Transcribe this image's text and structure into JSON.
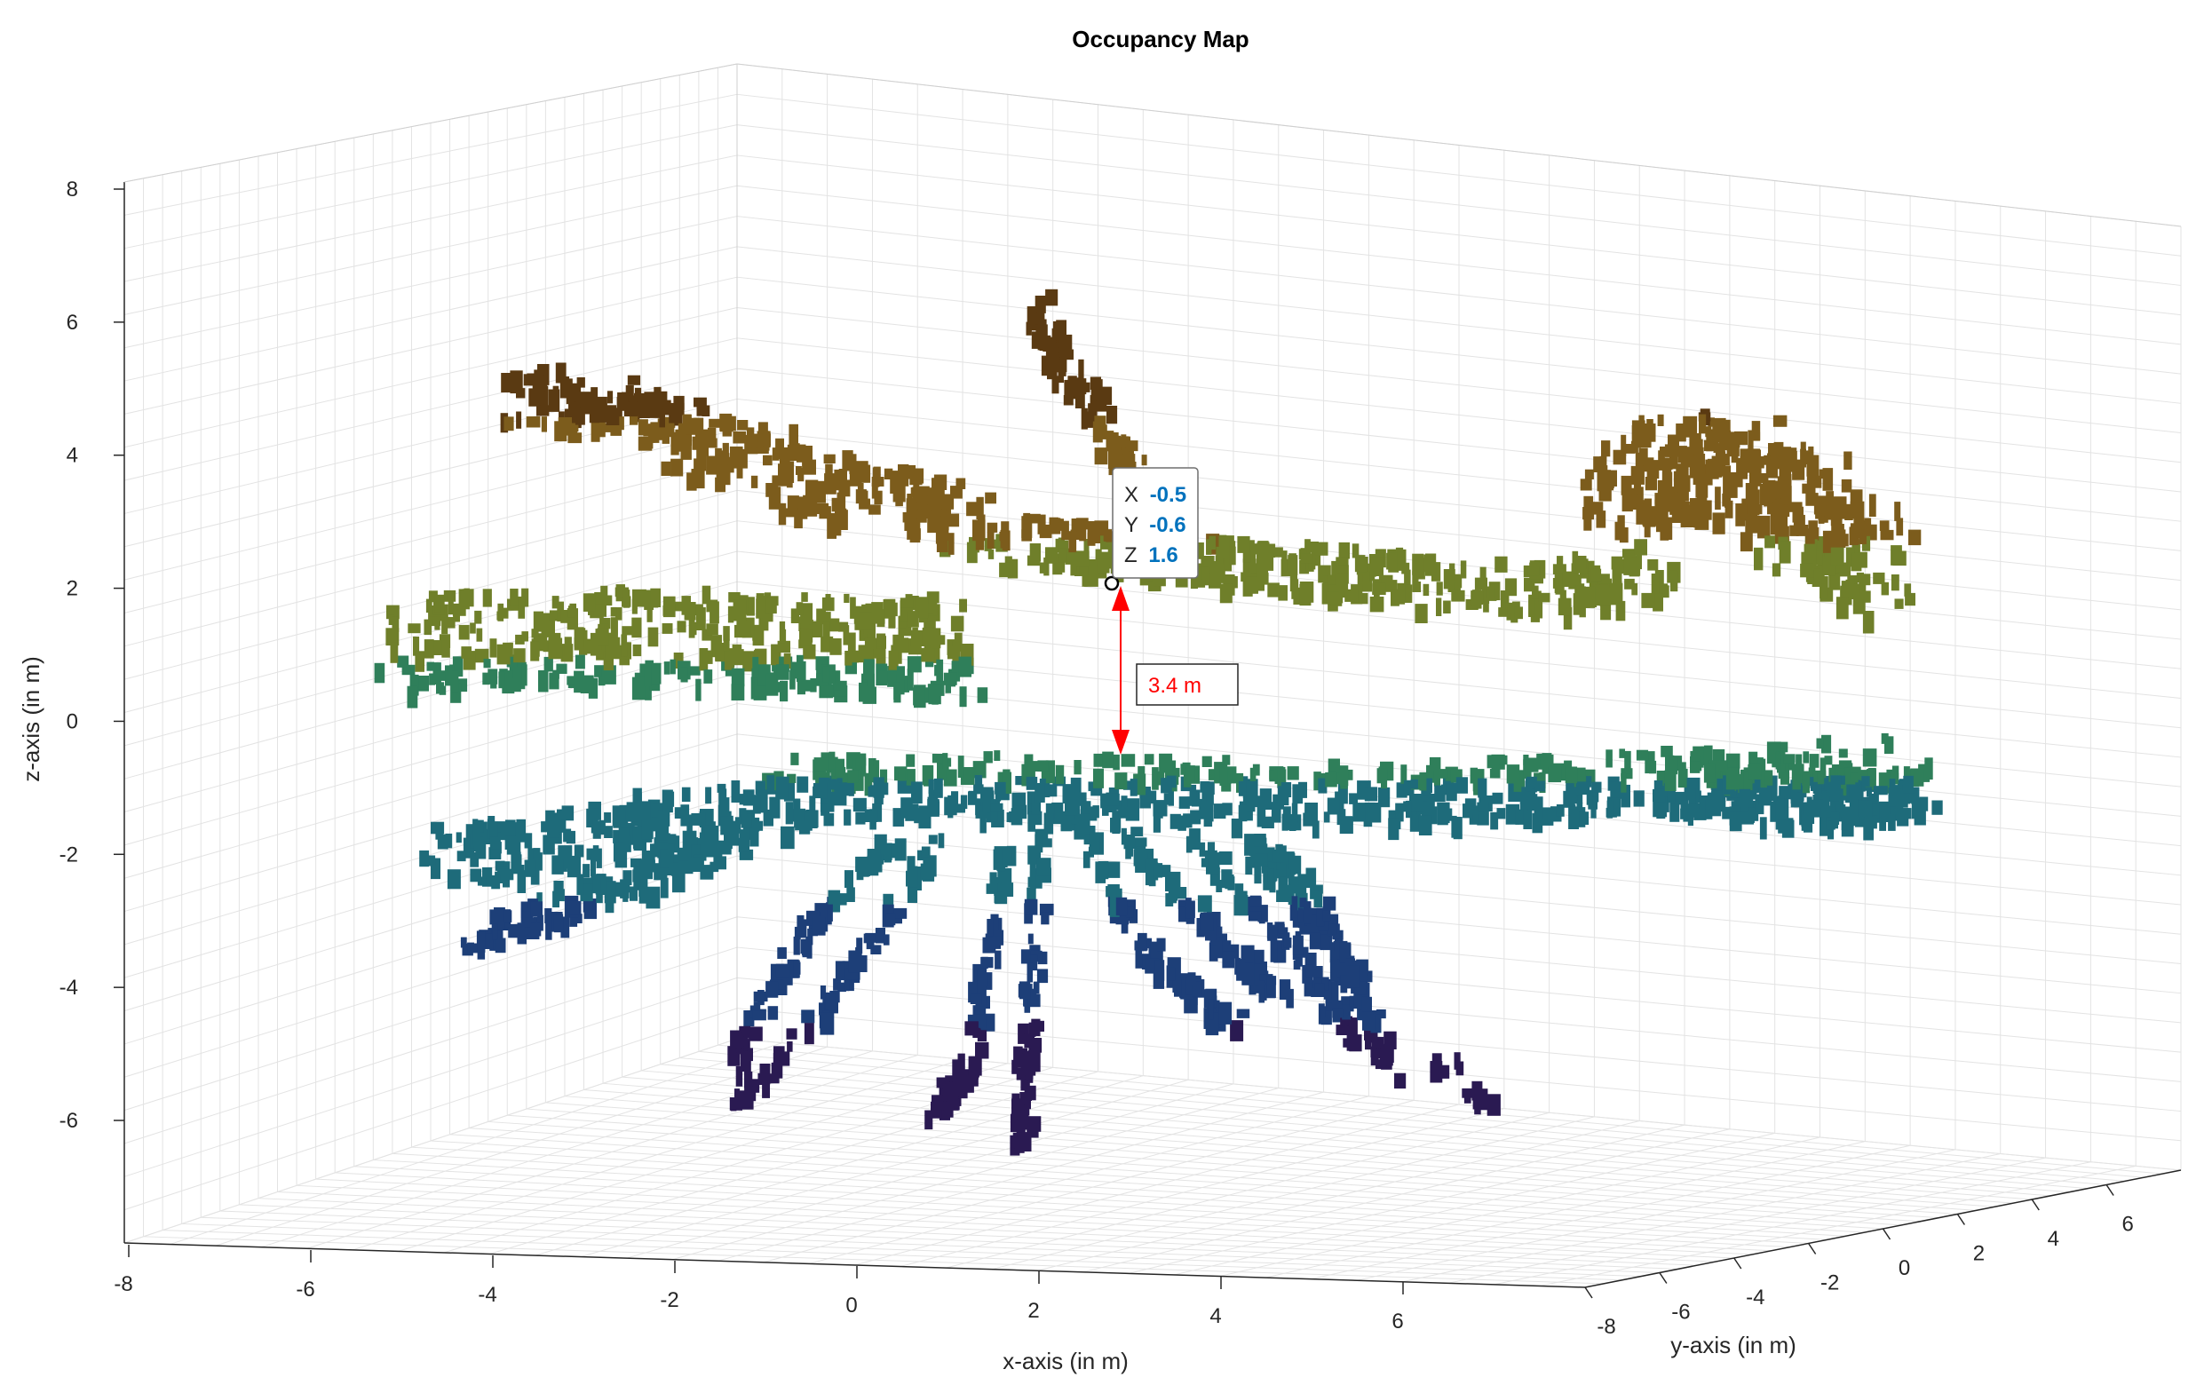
{
  "chart_data": {
    "type": "scatter",
    "title": "Occupancy Map",
    "xlabel": "x-axis (in m)",
    "ylabel": "y-axis (in m)",
    "zlabel": "z-axis (in m)",
    "xlim": [
      -8,
      8
    ],
    "ylim": [
      -8,
      8
    ],
    "zlim": [
      -8,
      8
    ],
    "xticks": [
      "-8",
      "-6",
      "-4",
      "-2",
      "0",
      "2",
      "4",
      "6"
    ],
    "yticks": [
      "-8",
      "-6",
      "-4",
      "-2",
      "0",
      "2",
      "4",
      "6"
    ],
    "zticks": [
      "8",
      "6",
      "4",
      "2",
      "0",
      "-2",
      "-4",
      "-6"
    ],
    "grid": true,
    "colormap": [
      "#2a1a52",
      "#1d3f78",
      "#1e6b7a",
      "#2f7f5a",
      "#6f7f2a",
      "#7c5c1c",
      "#5a3a12"
    ],
    "datatip": {
      "x_label": "X",
      "x_value": "-0.5",
      "y_label": "Y",
      "y_value": "-0.6",
      "z_label": "Z",
      "z_value": "1.6"
    },
    "annotation": {
      "text": "3.4 m",
      "color": "#ff0000"
    }
  }
}
